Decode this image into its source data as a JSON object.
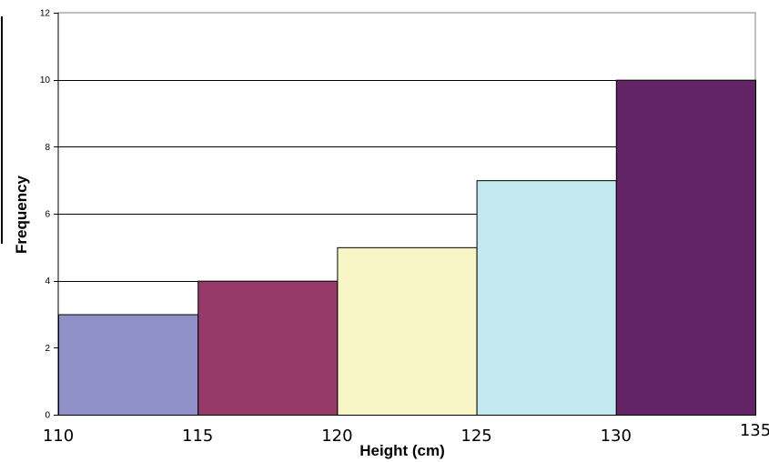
{
  "chart_data": {
    "type": "bar",
    "variant": "histogram",
    "title": "",
    "xlabel": "Height (cm)",
    "ylabel": "Frequency",
    "bins": [
      {
        "from": 110,
        "to": 115,
        "value": 3,
        "color": "#9090C8"
      },
      {
        "from": 115,
        "to": 120,
        "value": 4,
        "color": "#963A6A"
      },
      {
        "from": 120,
        "to": 125,
        "value": 5,
        "color": "#F8F6C6"
      },
      {
        "from": 125,
        "to": 130,
        "value": 7,
        "color": "#C4E8F0"
      },
      {
        "from": 130,
        "to": 135,
        "value": 10,
        "color": "#632466"
      }
    ],
    "x_ticks": [
      "110",
      "115",
      "120",
      "125",
      "130",
      "135"
    ],
    "y_ticks": [
      "0",
      "2",
      "4",
      "6",
      "8",
      "10",
      "12"
    ],
    "xlim": [
      110,
      135
    ],
    "ylim": [
      0,
      12
    ],
    "grid": "horizontal",
    "legend": "none"
  }
}
